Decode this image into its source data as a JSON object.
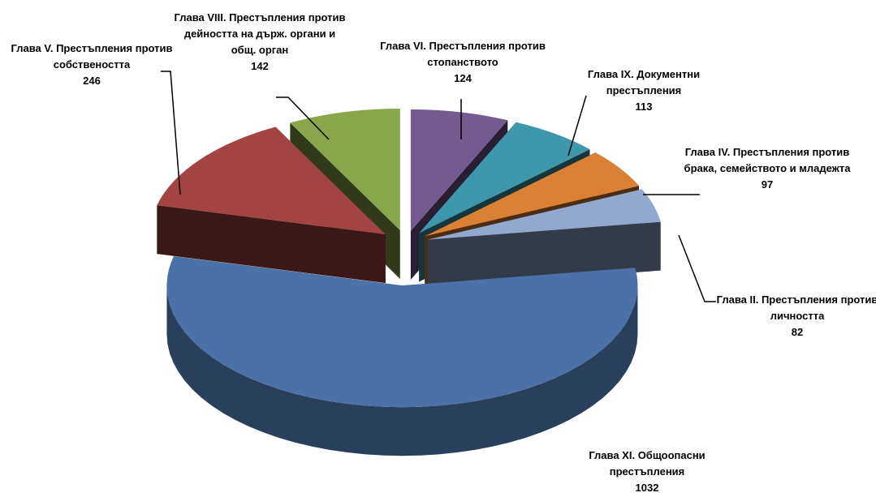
{
  "chart_data": {
    "type": "pie3d",
    "categories": [
      "Глава VI. Престъпления против стопанството",
      "Глава IX. Документни престъпления",
      "Глава IV. Престъпления против брака, семейството и младежта",
      "Глава II. Престъпления против личността",
      "Глава XI. Общоопасни престъпления",
      "Глава V. Престъпления против собствеността",
      "Глава VIII. Престъпления против дейността на държ. органи и общ. орган"
    ],
    "values": [
      124,
      113,
      97,
      82,
      1032,
      246,
      142
    ],
    "colors": [
      "#735a91",
      "#3f97ae",
      "#d98035",
      "#93a8cf",
      "#4a72a8",
      "#a24442",
      "#8aa64a"
    ]
  }
}
